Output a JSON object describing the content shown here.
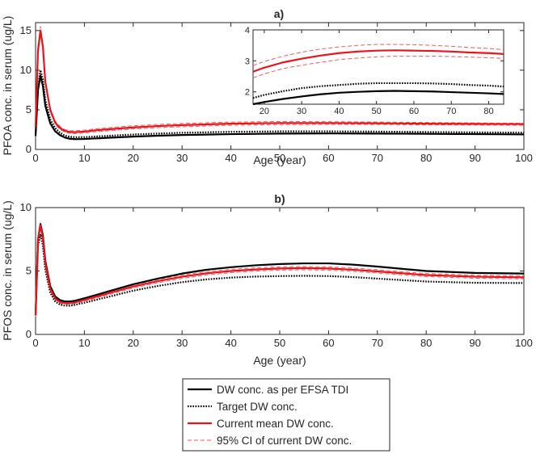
{
  "chart_data": [
    {
      "id": "a",
      "type": "line",
      "title": "a)",
      "xlabel": "Age (year)",
      "ylabel": "PFOA conc. in serum (ug/L)",
      "xlim": [
        0,
        100
      ],
      "ylim": [
        0,
        16
      ],
      "xticks": [
        0,
        10,
        20,
        30,
        40,
        50,
        60,
        70,
        80,
        90,
        100
      ],
      "yticks": [
        0,
        5,
        10,
        15
      ],
      "series": [
        {
          "key": "efsa",
          "x": [
            0,
            0.5,
            1,
            1.5,
            2,
            3,
            4,
            5,
            6,
            7,
            8,
            10,
            12,
            15,
            20,
            25,
            30,
            40,
            50,
            60,
            70,
            80,
            90,
            100
          ],
          "y": [
            1.7,
            7.5,
            9.3,
            8.0,
            5.5,
            3.3,
            2.3,
            1.8,
            1.5,
            1.35,
            1.3,
            1.32,
            1.38,
            1.48,
            1.62,
            1.73,
            1.82,
            1.93,
            2.0,
            2.02,
            2.0,
            1.97,
            1.93,
            1.9
          ]
        },
        {
          "key": "target",
          "x": [
            0,
            0.5,
            1,
            1.5,
            2,
            3,
            4,
            5,
            6,
            7,
            8,
            10,
            12,
            15,
            20,
            25,
            30,
            40,
            50,
            60,
            70,
            80,
            90,
            100
          ],
          "y": [
            2.0,
            8.0,
            10.0,
            8.8,
            6.2,
            3.8,
            2.7,
            2.1,
            1.75,
            1.6,
            1.55,
            1.55,
            1.62,
            1.72,
            1.88,
            2.0,
            2.1,
            2.22,
            2.28,
            2.28,
            2.25,
            2.2,
            2.15,
            2.12
          ]
        },
        {
          "key": "current",
          "x": [
            0,
            0.5,
            1,
            1.5,
            2,
            3,
            4,
            5,
            6,
            7,
            8,
            10,
            12,
            15,
            20,
            25,
            30,
            40,
            50,
            60,
            70,
            80,
            90,
            100
          ],
          "y": [
            2.8,
            12.5,
            15.0,
            13.0,
            8.5,
            5.0,
            3.4,
            2.7,
            2.35,
            2.2,
            2.18,
            2.25,
            2.4,
            2.55,
            2.78,
            2.95,
            3.07,
            3.25,
            3.33,
            3.33,
            3.3,
            3.25,
            3.22,
            3.2
          ]
        },
        {
          "key": "ci_upper",
          "x": [
            0,
            0.5,
            1,
            1.5,
            2,
            3,
            4,
            5,
            6,
            7,
            8,
            10,
            12,
            15,
            20,
            25,
            30,
            40,
            50,
            60,
            70,
            80,
            90,
            100
          ],
          "y": [
            3.0,
            13.0,
            15.5,
            13.4,
            8.8,
            5.2,
            3.6,
            2.9,
            2.5,
            2.37,
            2.36,
            2.43,
            2.58,
            2.74,
            2.98,
            3.15,
            3.28,
            3.45,
            3.52,
            3.5,
            3.45,
            3.4,
            3.35,
            3.3
          ]
        },
        {
          "key": "ci_lower",
          "x": [
            0,
            0.5,
            1,
            1.5,
            2,
            3,
            4,
            5,
            6,
            7,
            8,
            10,
            12,
            15,
            20,
            25,
            30,
            40,
            50,
            60,
            70,
            80,
            90,
            100
          ],
          "y": [
            2.6,
            12.0,
            14.5,
            12.6,
            8.2,
            4.8,
            3.2,
            2.5,
            2.2,
            2.03,
            2.0,
            2.07,
            2.22,
            2.36,
            2.58,
            2.75,
            2.86,
            3.05,
            3.14,
            3.16,
            3.15,
            3.1,
            3.08,
            3.05
          ]
        }
      ],
      "inset": {
        "xlim": [
          17,
          84
        ],
        "ylim": [
          1.6,
          4
        ],
        "xticks": [
          20,
          30,
          40,
          50,
          60,
          70,
          80
        ],
        "yticks": [
          2,
          3,
          4
        ],
        "x": [
          17,
          20,
          25,
          30,
          35,
          40,
          45,
          50,
          55,
          60,
          65,
          70,
          75,
          80,
          84
        ],
        "series": [
          {
            "key": "efsa",
            "y": [
              1.6,
              1.67,
              1.77,
              1.85,
              1.92,
              1.97,
              2.0,
              2.02,
              2.03,
              2.02,
              2.01,
              1.99,
              1.97,
              1.95,
              1.93
            ]
          },
          {
            "key": "target",
            "y": [
              1.8,
              1.9,
              2.02,
              2.12,
              2.18,
              2.22,
              2.26,
              2.28,
              2.28,
              2.28,
              2.27,
              2.25,
              2.22,
              2.2,
              2.17
            ]
          },
          {
            "key": "current",
            "y": [
              2.65,
              2.78,
              2.95,
              3.07,
              3.17,
              3.25,
              3.3,
              3.33,
              3.34,
              3.33,
              3.32,
              3.3,
              3.27,
              3.25,
              3.22
            ]
          },
          {
            "key": "ci_upper",
            "y": [
              2.85,
              2.98,
              3.15,
              3.28,
              3.38,
              3.45,
              3.5,
              3.53,
              3.53,
              3.52,
              3.5,
              3.47,
              3.43,
              3.4,
              3.36
            ]
          },
          {
            "key": "ci_lower",
            "y": [
              2.45,
              2.58,
              2.75,
              2.86,
              2.95,
              3.04,
              3.09,
              3.13,
              3.15,
              3.15,
              3.15,
              3.14,
              3.12,
              3.1,
              3.08
            ]
          }
        ]
      }
    },
    {
      "id": "b",
      "type": "line",
      "title": "b)",
      "xlabel": "Age (year)",
      "ylabel": "PFOS conc. in serum (ug/L)",
      "xlim": [
        0,
        100
      ],
      "ylim": [
        0,
        10
      ],
      "xticks": [
        0,
        10,
        20,
        30,
        40,
        50,
        60,
        70,
        80,
        90,
        100
      ],
      "yticks": [
        0,
        5,
        10
      ],
      "series": [
        {
          "key": "efsa",
          "x": [
            0,
            0.5,
            1,
            1.5,
            2,
            3,
            4,
            5,
            6,
            7,
            8,
            10,
            15,
            20,
            25,
            30,
            35,
            40,
            45,
            50,
            55,
            60,
            65,
            70,
            80,
            90,
            100
          ],
          "y": [
            1.5,
            7.5,
            8.7,
            7.8,
            5.8,
            3.8,
            3.0,
            2.7,
            2.6,
            2.6,
            2.65,
            2.85,
            3.4,
            3.95,
            4.4,
            4.8,
            5.1,
            5.3,
            5.45,
            5.55,
            5.6,
            5.6,
            5.5,
            5.35,
            5.0,
            4.85,
            4.8
          ]
        },
        {
          "key": "target",
          "x": [
            0,
            0.5,
            1,
            1.5,
            2,
            3,
            4,
            5,
            6,
            7,
            8,
            10,
            15,
            20,
            25,
            30,
            35,
            40,
            45,
            50,
            55,
            60,
            65,
            70,
            80,
            90,
            100
          ],
          "y": [
            1.5,
            7.0,
            7.9,
            7.0,
            5.1,
            3.3,
            2.6,
            2.35,
            2.27,
            2.27,
            2.32,
            2.5,
            2.97,
            3.45,
            3.82,
            4.12,
            4.34,
            4.48,
            4.56,
            4.6,
            4.62,
            4.6,
            4.52,
            4.4,
            4.17,
            4.07,
            4.05
          ]
        },
        {
          "key": "current",
          "x": [
            0,
            0.5,
            1,
            1.5,
            2,
            3,
            4,
            5,
            6,
            7,
            8,
            10,
            15,
            20,
            25,
            30,
            35,
            40,
            45,
            50,
            55,
            60,
            65,
            70,
            80,
            90,
            100
          ],
          "y": [
            1.5,
            7.5,
            8.6,
            7.6,
            5.6,
            3.6,
            2.85,
            2.55,
            2.47,
            2.47,
            2.52,
            2.72,
            3.25,
            3.78,
            4.2,
            4.55,
            4.82,
            5.0,
            5.12,
            5.2,
            5.23,
            5.2,
            5.1,
            4.97,
            4.68,
            4.55,
            4.5
          ]
        },
        {
          "key": "ci_upper",
          "x": [
            0,
            0.5,
            1,
            1.5,
            2,
            3,
            4,
            5,
            6,
            7,
            8,
            10,
            15,
            20,
            25,
            30,
            35,
            40,
            45,
            50,
            55,
            60,
            65,
            70,
            80,
            90,
            100
          ],
          "y": [
            1.6,
            7.7,
            8.8,
            7.8,
            5.75,
            3.72,
            2.95,
            2.65,
            2.57,
            2.57,
            2.62,
            2.83,
            3.37,
            3.9,
            4.33,
            4.68,
            4.95,
            5.13,
            5.25,
            5.33,
            5.36,
            5.33,
            5.23,
            5.1,
            4.8,
            4.67,
            4.62
          ]
        },
        {
          "key": "ci_lower",
          "x": [
            0,
            0.5,
            1,
            1.5,
            2,
            3,
            4,
            5,
            6,
            7,
            8,
            10,
            15,
            20,
            25,
            30,
            35,
            40,
            45,
            50,
            55,
            60,
            65,
            70,
            80,
            90,
            100
          ],
          "y": [
            1.4,
            7.3,
            8.4,
            7.4,
            5.45,
            3.48,
            2.75,
            2.45,
            2.37,
            2.37,
            2.42,
            2.61,
            3.13,
            3.66,
            4.07,
            4.42,
            4.69,
            4.87,
            4.99,
            5.07,
            5.1,
            5.07,
            4.97,
            4.84,
            4.56,
            4.43,
            4.38
          ]
        }
      ]
    }
  ],
  "legend": {
    "position": "bottom-center",
    "items": [
      {
        "key": "efsa",
        "label": "DW conc. as per EFSA TDI"
      },
      {
        "key": "target",
        "label": "Target DW conc."
      },
      {
        "key": "current",
        "label": "Current mean DW conc."
      },
      {
        "key": "ci",
        "label": "95% CI of current DW conc."
      }
    ]
  },
  "colors": {
    "efsa": "#000000",
    "target": "#000000",
    "current": "#e8141a",
    "ci": "#ef5a5f",
    "axis": "#262626",
    "bg": "#ffffff"
  }
}
